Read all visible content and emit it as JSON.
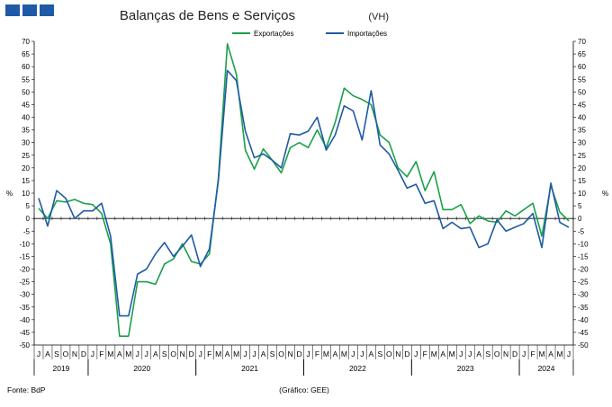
{
  "colors": {
    "logo": "#1f5aa6",
    "exportacoes": "#1aa04a",
    "importacoes": "#1f5aa6",
    "axis": "#000000"
  },
  "chart_data": {
    "type": "line",
    "title": "Balanças de Bens e Serviços",
    "title_suffix": "(VH)",
    "ylabel_left": "%",
    "ylabel_right": "%",
    "ylim": [
      -50,
      70
    ],
    "y_step": 5,
    "grid": false,
    "legend_position": "top-center",
    "footer_left": "Fonte: BdP",
    "footer_center": "(Gráfico: GEE)",
    "months": [
      "J",
      "A",
      "S",
      "O",
      "N",
      "D",
      "J",
      "F",
      "M",
      "A",
      "M",
      "J",
      "J",
      "A",
      "S",
      "O",
      "N",
      "D",
      "J",
      "F",
      "M",
      "A",
      "M",
      "J",
      "J",
      "A",
      "S",
      "O",
      "N",
      "D",
      "J",
      "F",
      "M",
      "A",
      "M",
      "J",
      "J",
      "A",
      "S",
      "O",
      "N",
      "D",
      "J",
      "F",
      "M",
      "A",
      "M",
      "J",
      "J",
      "A",
      "S",
      "O",
      "N",
      "D",
      "J",
      "F",
      "M",
      "A",
      "M",
      "J"
    ],
    "years": [
      {
        "label": "2019",
        "start": 0,
        "end": 5
      },
      {
        "label": "2020",
        "start": 6,
        "end": 17
      },
      {
        "label": "2021",
        "start": 18,
        "end": 29
      },
      {
        "label": "2022",
        "start": 30,
        "end": 41
      },
      {
        "label": "2023",
        "start": 42,
        "end": 53
      },
      {
        "label": "2024",
        "start": 54,
        "end": 59
      }
    ],
    "series": [
      {
        "name": "Exportações",
        "values": [
          4,
          0,
          7,
          6.5,
          7.5,
          6,
          5.5,
          2,
          -10,
          -46.5,
          -46.5,
          -25,
          -25,
          -26,
          -18,
          -16,
          -10,
          -17,
          -18,
          -14,
          16,
          69,
          57,
          27,
          19.5,
          27.5,
          23,
          18,
          28,
          30,
          28,
          35,
          28,
          38,
          51.5,
          48.5,
          47,
          45,
          33,
          30,
          20,
          16.5,
          22.5,
          11,
          18.5,
          3.5,
          3.5,
          5.5,
          -2,
          1,
          -1,
          -1.5,
          3,
          1,
          3.5,
          6,
          -7,
          13,
          2.5,
          -1
        ]
      },
      {
        "name": "Importações",
        "values": [
          8,
          -3,
          11,
          8,
          0,
          3,
          3,
          6,
          -7,
          -38.5,
          -38.5,
          -22,
          -20,
          -14,
          -9.5,
          -15,
          -11,
          -6.5,
          -19,
          -12,
          15,
          58.5,
          54.5,
          34.5,
          24,
          25.5,
          23,
          20,
          33.5,
          33,
          34.5,
          40,
          27,
          33,
          44.5,
          42.5,
          31,
          50.5,
          29,
          25.5,
          19,
          12,
          13.5,
          6,
          7,
          -4,
          -1.5,
          -4,
          -3.5,
          -11.5,
          -10,
          -0.5,
          -5,
          -3.5,
          -2,
          2,
          -11.5,
          14,
          -1.5,
          -3.5
        ]
      }
    ]
  }
}
